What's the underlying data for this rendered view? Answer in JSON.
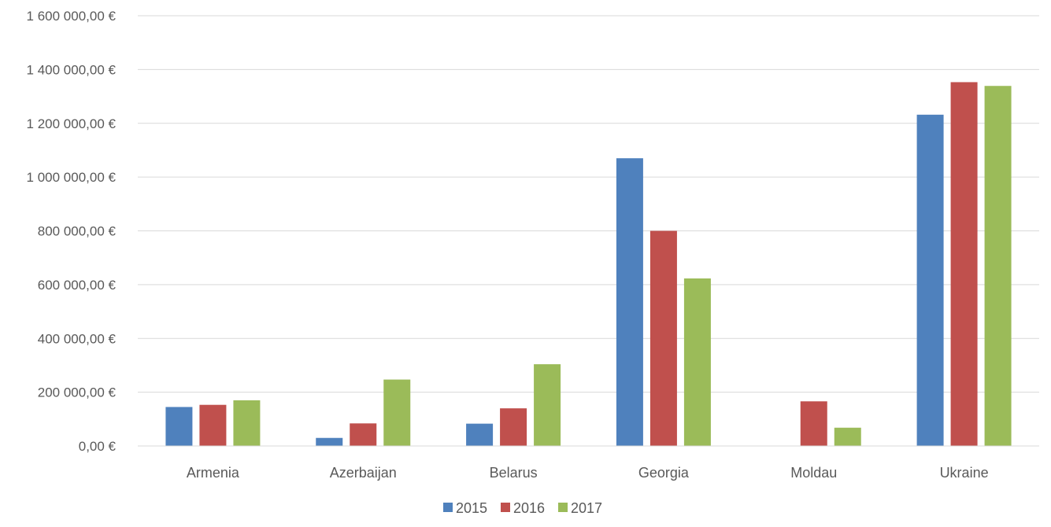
{
  "chart_data": {
    "type": "bar",
    "title": "",
    "xlabel": "",
    "ylabel": "",
    "categories": [
      "Armenia",
      "Azerbaijan",
      "Belarus",
      "Georgia",
      "Moldau",
      "Ukraine"
    ],
    "series": [
      {
        "name": "2015",
        "color": "#4F81BD",
        "values": [
          145000,
          30000,
          83000,
          1070000,
          0,
          1232000
        ]
      },
      {
        "name": "2016",
        "color": "#C0504D",
        "values": [
          153000,
          84000,
          140000,
          800000,
          166000,
          1353000
        ]
      },
      {
        "name": "2017",
        "color": "#9BBB59",
        "values": [
          170000,
          247000,
          304000,
          623000,
          68000,
          1339000
        ]
      }
    ],
    "ylim": [
      0,
      1600000
    ],
    "yticks": [
      {
        "value": 0,
        "label": "0,00 €"
      },
      {
        "value": 200000,
        "label": "200 000,00 €"
      },
      {
        "value": 400000,
        "label": "400 000,00 €"
      },
      {
        "value": 600000,
        "label": "600 000,00 €"
      },
      {
        "value": 800000,
        "label": "800 000,00 €"
      },
      {
        "value": 1000000,
        "label": "1 000 000,00 €"
      },
      {
        "value": 1200000,
        "label": "1 200 000,00 €"
      },
      {
        "value": 1400000,
        "label": "1 400 000,00 €"
      },
      {
        "value": 1600000,
        "label": "1 600 000,00 €"
      }
    ],
    "grid": true,
    "legend_position": "bottom"
  }
}
